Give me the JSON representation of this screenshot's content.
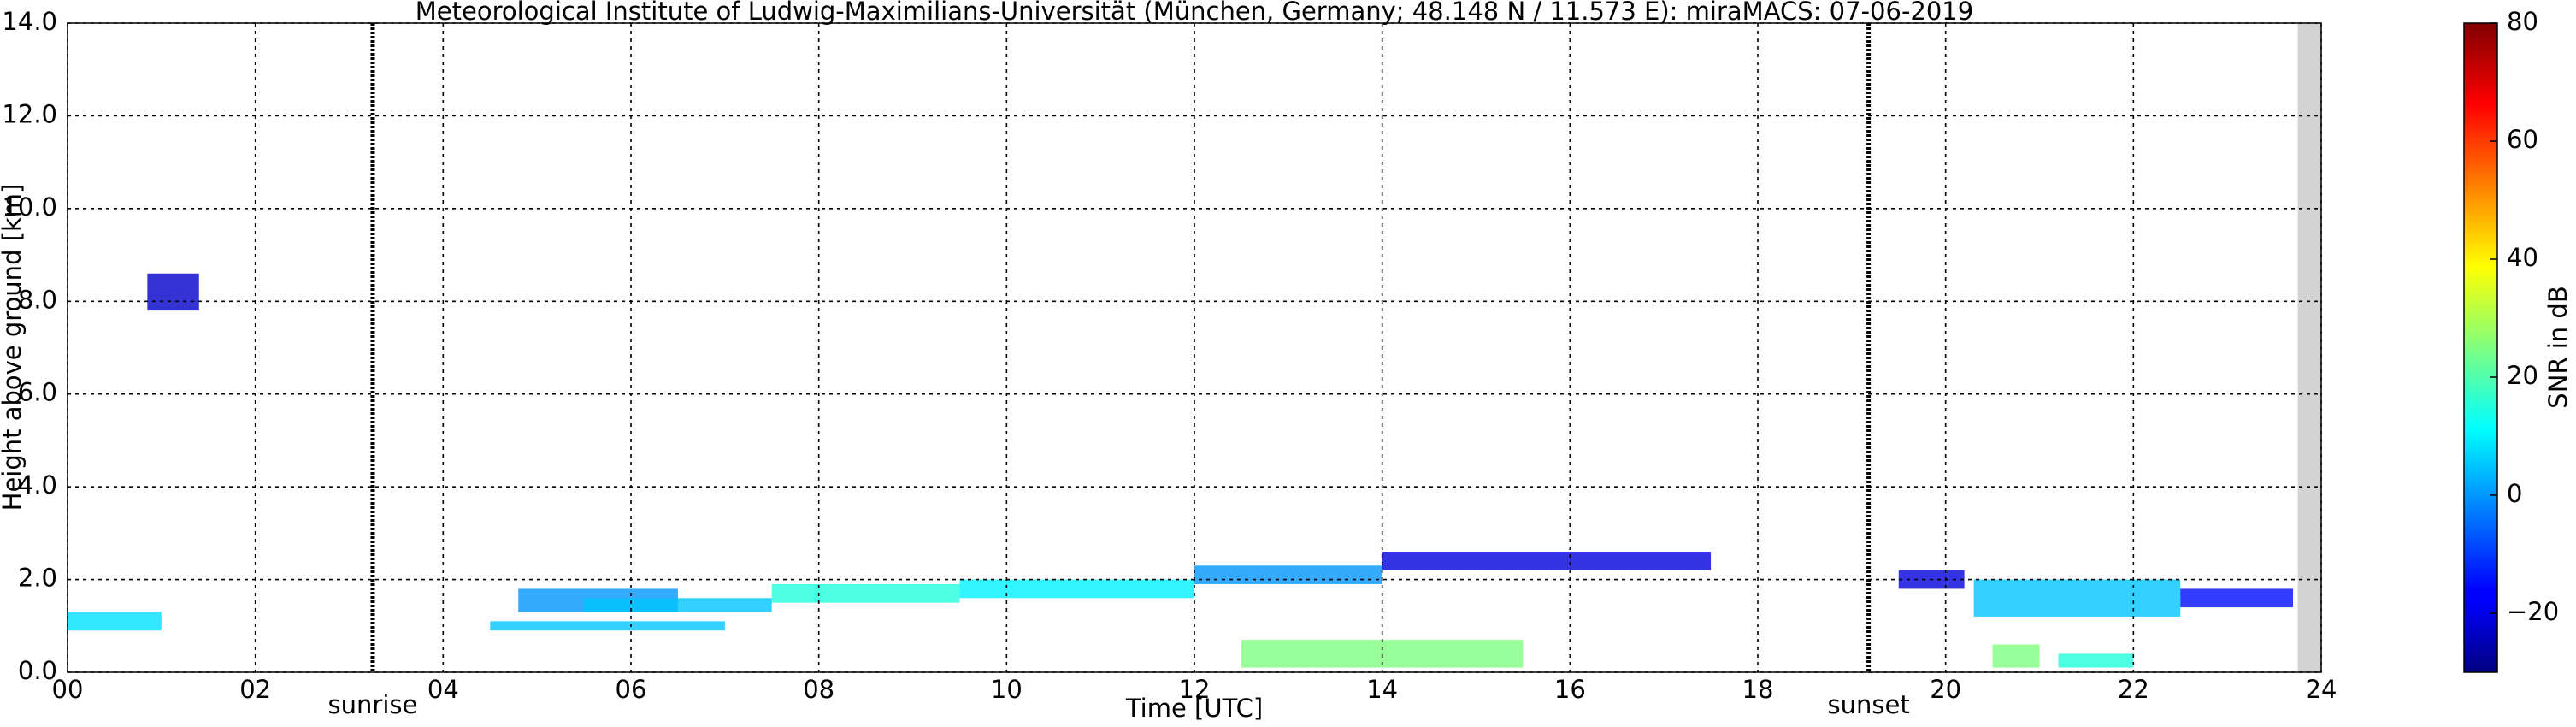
{
  "chart_data": {
    "type": "heatmap",
    "title": "Meteorological Institute of Ludwig-Maximilians-Universität (München, Germany; 48.148 N / 11.573 E):    miraMACS: 07-06-2019",
    "x_label": "Time [UTC]",
    "y_label": "Height above ground [km]",
    "colorbar_label": "SNR in dB",
    "xlim": [
      0,
      24
    ],
    "ylim": [
      0,
      14
    ],
    "clim": [
      -30,
      80
    ],
    "colormap": "jet",
    "grid": true,
    "xticks": [
      {
        "value": 0,
        "label": "00"
      },
      {
        "value": 2,
        "label": "02"
      },
      {
        "value": 4,
        "label": "04"
      },
      {
        "value": 6,
        "label": "06"
      },
      {
        "value": 8,
        "label": "08"
      },
      {
        "value": 10,
        "label": "10"
      },
      {
        "value": 12,
        "label": "12"
      },
      {
        "value": 14,
        "label": "14"
      },
      {
        "value": 16,
        "label": "16"
      },
      {
        "value": 18,
        "label": "18"
      },
      {
        "value": 20,
        "label": "20"
      },
      {
        "value": 22,
        "label": "22"
      },
      {
        "value": 24,
        "label": "24"
      }
    ],
    "yticks": [
      {
        "value": 0,
        "label": "0.0"
      },
      {
        "value": 2,
        "label": "2.0"
      },
      {
        "value": 4,
        "label": "4.0"
      },
      {
        "value": 6,
        "label": "6.0"
      },
      {
        "value": 8,
        "label": "8.0"
      },
      {
        "value": 10,
        "label": "10.0"
      },
      {
        "value": 12,
        "label": "12.0"
      },
      {
        "value": 14,
        "label": "14.0"
      }
    ],
    "cticks": [
      {
        "value": -20,
        "label": "−20"
      },
      0,
      20,
      40,
      60,
      80
    ],
    "markers": [
      {
        "label": "sunrise",
        "x": 3.25
      },
      {
        "label": "sunset",
        "x": 19.18
      }
    ],
    "no_data": [
      23.75,
      24
    ],
    "echoes": [
      {
        "x": [
          0,
          1.0
        ],
        "y": [
          0.9,
          1.3
        ],
        "snr": 8
      },
      {
        "x": [
          0.85,
          1.4
        ],
        "y": [
          7.8,
          8.6
        ],
        "snr": -22
      },
      {
        "x": [
          4.8,
          6.5
        ],
        "y": [
          1.3,
          1.8
        ],
        "snr": 0
      },
      {
        "x": [
          5.5,
          7.5
        ],
        "y": [
          1.3,
          1.6
        ],
        "snr": 5
      },
      {
        "x": [
          7.5,
          9.5
        ],
        "y": [
          1.5,
          1.9
        ],
        "snr": 15
      },
      {
        "x": [
          9.5,
          12
        ],
        "y": [
          1.6,
          2.0
        ],
        "snr": 10
      },
      {
        "x": [
          12,
          14
        ],
        "y": [
          1.9,
          2.3
        ],
        "snr": 0
      },
      {
        "x": [
          14,
          17.5
        ],
        "y": [
          2.2,
          2.6
        ],
        "snr": -20
      },
      {
        "x": [
          19.5,
          20.2
        ],
        "y": [
          1.8,
          2.2
        ],
        "snr": -20
      },
      {
        "x": [
          20.3,
          22.5
        ],
        "y": [
          1.2,
          2.0
        ],
        "snr": 5
      },
      {
        "x": [
          22.5,
          23.7
        ],
        "y": [
          1.4,
          1.8
        ],
        "snr": -15
      },
      {
        "x": [
          20.5,
          21.0
        ],
        "y": [
          0.1,
          0.6
        ],
        "snr": 25
      },
      {
        "x": [
          21.2,
          22.0
        ],
        "y": [
          0.1,
          0.4
        ],
        "snr": 15
      },
      {
        "x": [
          12.5,
          15.5
        ],
        "y": [
          0.1,
          0.7
        ],
        "snr": 25
      },
      {
        "x": [
          4.5,
          7.0
        ],
        "y": [
          0.9,
          1.1
        ],
        "snr": 5
      }
    ]
  }
}
